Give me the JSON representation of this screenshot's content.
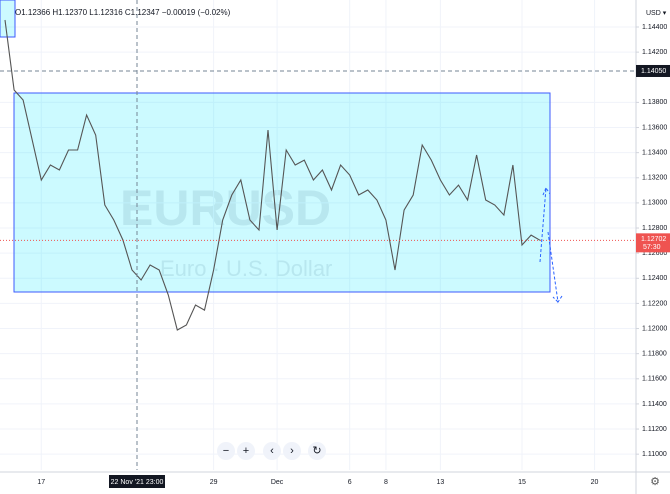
{
  "chart_data": {
    "type": "line",
    "symbol": "EURUSD",
    "description": "Euro · U.S. Dollar",
    "ohlc": "O1.12366 H1.12370 L1.12316 C1.12347 −0.00019 (−0.02%)",
    "currency": "USD ▾",
    "categories": [
      null,
      null,
      null,
      null,
      "17",
      null,
      null,
      null,
      null,
      null,
      null,
      null,
      null,
      null,
      null,
      null,
      null,
      null,
      null,
      null,
      null,
      null,
      null,
      "29",
      null,
      null,
      null,
      null,
      null,
      null,
      "Dec",
      null,
      null,
      null,
      null,
      null,
      null,
      null,
      "6",
      null,
      null,
      null,
      "8",
      null,
      null,
      null,
      null,
      null,
      "13",
      null,
      null,
      null,
      null,
      null,
      null,
      null,
      null,
      "15",
      null,
      null,
      null,
      null,
      null,
      null,
      null,
      "20",
      null,
      null,
      null,
      null
    ],
    "values": [
      1.14456,
      1.13899,
      1.13819,
      1.13501,
      1.13182,
      1.13302,
      1.13262,
      1.13421,
      1.13421,
      1.137,
      1.1354,
      1.12983,
      1.12864,
      1.12705,
      1.12466,
      1.12386,
      1.12506,
      1.12466,
      1.12267,
      1.11988,
      1.12028,
      1.12187,
      1.12147,
      1.12466,
      1.12864,
      1.13063,
      1.13182,
      1.12864,
      1.12784,
      1.1358,
      1.12784,
      1.13421,
      1.13302,
      1.13341,
      1.13182,
      1.13262,
      1.13103,
      1.13302,
      1.13222,
      1.13063,
      1.13103,
      1.13023,
      1.12864,
      1.12466,
      1.12943,
      1.13063,
      1.13461,
      1.13341,
      1.13182,
      1.13063,
      1.13142,
      1.13023,
      1.13381,
      1.13023,
      1.12983,
      1.12903,
      1.13302,
      1.12665,
      1.12744,
      1.12702,
      null,
      null,
      null,
      null,
      null,
      null,
      null,
      null,
      null,
      null
    ],
    "color": "#555555",
    "ylim": [
      1.10874,
      1.14615
    ],
    "yticks": [
      {
        "value": 1.144,
        "label": "1.14400"
      },
      {
        "value": 1.142,
        "label": "1.14200"
      },
      {
        "value": 1.138,
        "label": "1.13800"
      },
      {
        "value": 1.136,
        "label": "1.13600"
      },
      {
        "value": 1.134,
        "label": "1.13400"
      },
      {
        "value": 1.132,
        "label": "1.13200"
      },
      {
        "value": 1.13,
        "label": "1.13000"
      },
      {
        "value": 1.128,
        "label": "1.12800"
      },
      {
        "value": 1.126,
        "label": "1.12600"
      },
      {
        "value": 1.124,
        "label": "1.12400"
      },
      {
        "value": 1.122,
        "label": "1.12200"
      },
      {
        "value": 1.12,
        "label": "1.12000"
      },
      {
        "value": 1.118,
        "label": "1.11800"
      },
      {
        "value": 1.116,
        "label": "1.11600"
      },
      {
        "value": 1.114,
        "label": "1.11400"
      },
      {
        "value": 1.112,
        "label": "1.11200"
      },
      {
        "value": 1.11,
        "label": "1.11000"
      }
    ],
    "last_price": 1.12702,
    "countdown": "57:30",
    "crosshair_price": {
      "value": 1.1405,
      "label": "1.14050"
    },
    "crosshair_time": "22 Nov '21  23:00",
    "grid": true
  }
}
